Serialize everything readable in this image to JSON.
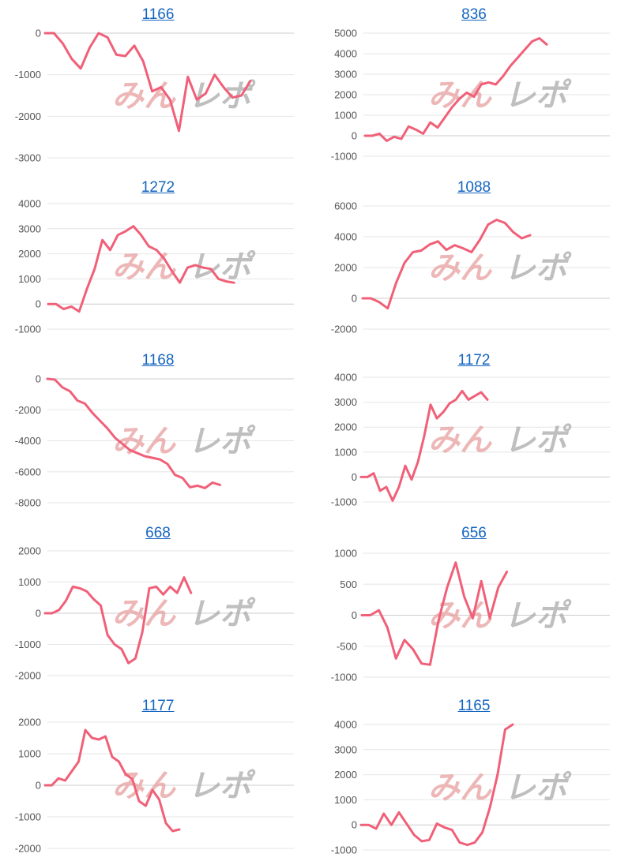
{
  "colors": {
    "line": "#f06078",
    "title_link": "#1565c0",
    "grid": "#e6e6e6"
  },
  "watermark": {
    "part1": "みん",
    "part2": "レポ"
  },
  "chart_data": [
    {
      "type": "line",
      "title": "1166",
      "yticks": [
        0,
        -1000,
        -2000,
        -3000
      ],
      "ylim": [
        -3000,
        0
      ],
      "values": [
        0,
        0,
        -250,
        -620,
        -850,
        -350,
        0,
        -100,
        -520,
        -550,
        -300,
        -680,
        -1400,
        -1300,
        -1600,
        -2350,
        -1050,
        -1600,
        -1450,
        -1000,
        -1300,
        -1550,
        -1500,
        -1150
      ]
    },
    {
      "type": "line",
      "title": "836",
      "yticks": [
        5000,
        4000,
        3000,
        2000,
        1000,
        0,
        -1000
      ],
      "ylim": [
        -1000,
        5000
      ],
      "values": [
        0,
        0,
        100,
        -250,
        -50,
        -150,
        450,
        300,
        100,
        650,
        400,
        900,
        1400,
        1800,
        2100,
        1900,
        2500,
        2600,
        2500,
        2900,
        3400,
        3800,
        4200,
        4600,
        4750,
        4450
      ]
    },
    {
      "type": "line",
      "title": "1272",
      "yticks": [
        4000,
        3000,
        2000,
        1000,
        0,
        -1000
      ],
      "ylim": [
        -1000,
        4000
      ],
      "values": [
        0,
        0,
        -200,
        -100,
        -300,
        600,
        1400,
        2550,
        2150,
        2750,
        2900,
        3100,
        2750,
        2300,
        2150,
        1800,
        1300,
        850,
        1450,
        1550,
        1450,
        1400,
        1000,
        900,
        850
      ]
    },
    {
      "type": "line",
      "title": "1088",
      "yticks": [
        6000,
        4000,
        2000,
        0,
        -2000
      ],
      "ylim": [
        -2000,
        6000
      ],
      "values": [
        0,
        0,
        -250,
        -650,
        1000,
        2300,
        3000,
        3100,
        3500,
        3700,
        3150,
        3450,
        3250,
        3000,
        3800,
        4800,
        5100,
        4900,
        4300,
        3900,
        4100
      ]
    },
    {
      "type": "line",
      "title": "1168",
      "yticks": [
        0,
        -2000,
        -4000,
        -6000,
        -8000
      ],
      "ylim": [
        -8000,
        0
      ],
      "values": [
        0,
        -50,
        -550,
        -800,
        -1400,
        -1600,
        -2200,
        -2700,
        -3200,
        -3800,
        -4200,
        -4600,
        -4800,
        -5000,
        -5100,
        -5200,
        -5500,
        -6200,
        -6400,
        -7000,
        -6900,
        -7050,
        -6700,
        -6850
      ]
    },
    {
      "type": "line",
      "title": "1172",
      "yticks": [
        4000,
        3000,
        2000,
        1000,
        0,
        -1000
      ],
      "ylim": [
        -1000,
        4000
      ],
      "values": [
        0,
        0,
        150,
        -550,
        -400,
        -950,
        -400,
        450,
        -100,
        600,
        1650,
        2900,
        2350,
        2600,
        2950,
        3100,
        3450,
        3100,
        3250,
        3400,
        3100
      ]
    },
    {
      "type": "line",
      "title": "668",
      "yticks": [
        2000,
        1000,
        0,
        -1000,
        -2000
      ],
      "ylim": [
        -2000,
        2000
      ],
      "values": [
        0,
        0,
        100,
        400,
        850,
        800,
        700,
        450,
        250,
        -700,
        -1000,
        -1150,
        -1600,
        -1450,
        -600,
        800,
        850,
        600,
        850,
        650,
        1150,
        650
      ]
    },
    {
      "type": "line",
      "title": "656",
      "yticks": [
        1000,
        500,
        0,
        -500,
        -1000
      ],
      "ylim": [
        -1000,
        1000
      ],
      "values": [
        0,
        0,
        80,
        -200,
        -700,
        -400,
        -550,
        -780,
        -800,
        -80,
        450,
        850,
        300,
        -50,
        550,
        -50,
        450,
        700
      ]
    },
    {
      "type": "line",
      "title": "1177",
      "yticks": [
        2000,
        1000,
        0,
        -1000,
        -2000
      ],
      "ylim": [
        -2000,
        2000
      ],
      "values": [
        0,
        0,
        220,
        150,
        450,
        750,
        1750,
        1500,
        1450,
        1550,
        900,
        750,
        350,
        200,
        -500,
        -650,
        -150,
        -450,
        -1200,
        -1450,
        -1400
      ]
    },
    {
      "type": "line",
      "title": "1165",
      "yticks": [
        4000,
        3000,
        2000,
        1000,
        0,
        -1000
      ],
      "ylim": [
        -1000,
        4000
      ],
      "values": [
        0,
        0,
        -150,
        450,
        0,
        500,
        50,
        -400,
        -650,
        -600,
        50,
        -100,
        -200,
        -700,
        -800,
        -700,
        -300,
        700,
        2000,
        3800,
        4000
      ]
    }
  ]
}
